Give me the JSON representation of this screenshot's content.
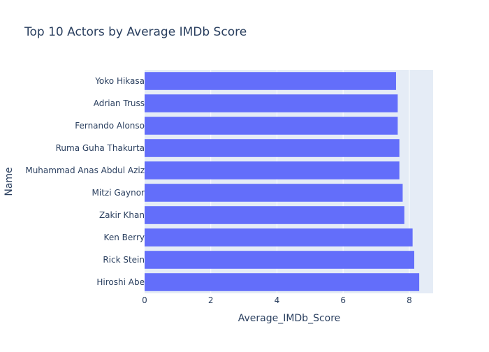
{
  "chart_data": {
    "type": "bar",
    "orientation": "horizontal",
    "title": "Top 10 Actors by Average IMDb Score",
    "xlabel": "Average_IMDb_Score",
    "ylabel": "Name",
    "xlim": [
      0,
      8.72
    ],
    "x_ticks": [
      0,
      2,
      4,
      6,
      8
    ],
    "grid": true,
    "legend": "none",
    "bar_color": "#636efa",
    "plot_bg_color": "#e5ecf6",
    "categories": [
      "Yoko Hikasa",
      "Adrian Truss",
      "Fernando Alonso",
      "Ruma Guha Thakurta",
      "Muhammad Anas Abdul Aziz",
      "Mitzi Gaynor",
      "Zakir Khan",
      "Ken Berry",
      "Rick Stein",
      "Hiroshi Abe"
    ],
    "values": [
      7.6,
      7.65,
      7.65,
      7.7,
      7.7,
      7.8,
      7.85,
      8.1,
      8.15,
      8.3
    ]
  }
}
